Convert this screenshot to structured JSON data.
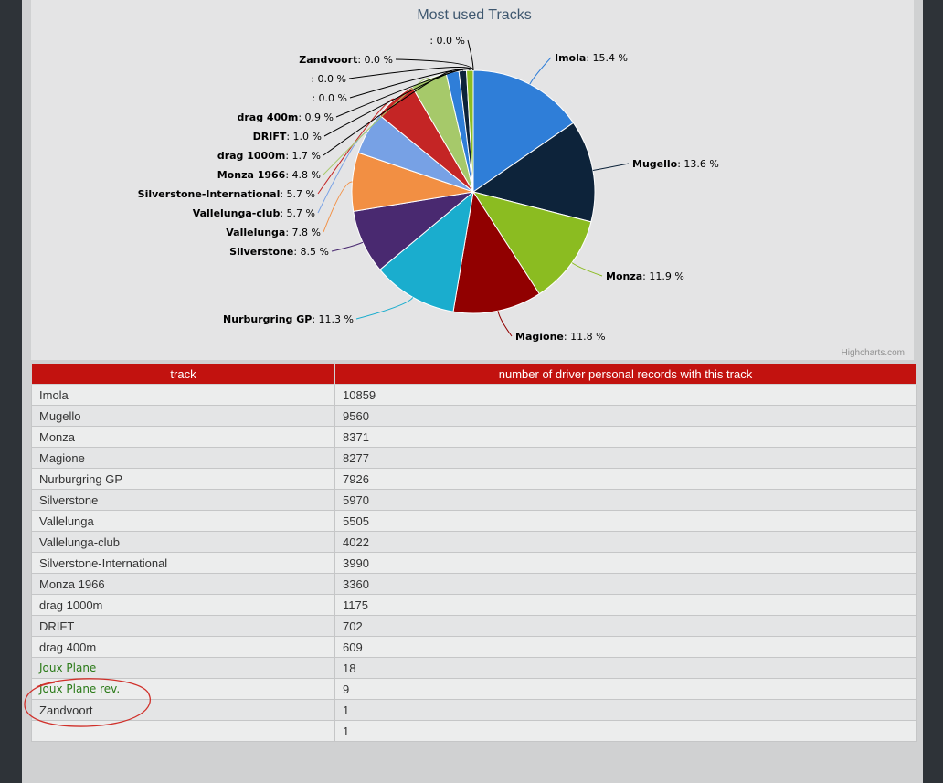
{
  "chart_data": {
    "type": "pie",
    "title": "Most used Tracks",
    "credit": "Highcharts.com",
    "slices": [
      {
        "label": "Imola",
        "value": 15.4,
        "color": "#2f7ed8"
      },
      {
        "label": "Mugello",
        "value": 13.6,
        "color": "#0d233a"
      },
      {
        "label": "Monza",
        "value": 11.9,
        "color": "#8bbc21"
      },
      {
        "label": "Magione",
        "value": 11.8,
        "color": "#910000"
      },
      {
        "label": "Nurburgring GP",
        "value": 11.3,
        "color": "#1aadce"
      },
      {
        "label": "Silverstone",
        "value": 8.5,
        "color": "#492970"
      },
      {
        "label": "Vallelunga",
        "value": 7.8,
        "color": "#f28f43"
      },
      {
        "label": "Vallelunga-club",
        "value": 5.7,
        "color": "#77a1e5"
      },
      {
        "label": "Silverstone-International",
        "value": 5.7,
        "color": "#c42525"
      },
      {
        "label": "Monza 1966",
        "value": 4.8,
        "color": "#a6c96a"
      },
      {
        "label": "drag 1000m",
        "value": 1.7,
        "color": "#2f7ed8"
      },
      {
        "label": "DRIFT",
        "value": 1.0,
        "color": "#0d233a"
      },
      {
        "label": "drag 400m",
        "value": 0.9,
        "color": "#8bbc21"
      },
      {
        "label": "",
        "value": 0.0,
        "color": "#910000"
      },
      {
        "label": "",
        "value": 0.0,
        "color": "#1aadce"
      },
      {
        "label": "Zandvoort",
        "value": 0.0,
        "color": "#492970"
      },
      {
        "label": "",
        "value": 0.0,
        "color": "#f28f43"
      }
    ]
  },
  "table": {
    "headers": [
      "track",
      "number of driver personal records with this track"
    ],
    "rows": [
      [
        "Imola",
        "10859"
      ],
      [
        "Mugello",
        "9560"
      ],
      [
        "Monza",
        "8371"
      ],
      [
        "Magione",
        "8277"
      ],
      [
        "Nurburgring GP",
        "7926"
      ],
      [
        "Silverstone",
        "5970"
      ],
      [
        "Vallelunga",
        "5505"
      ],
      [
        "Vallelunga-club",
        "4022"
      ],
      [
        "Silverstone-International",
        "3990"
      ],
      [
        "Monza 1966",
        "3360"
      ],
      [
        "drag 1000m",
        "1175"
      ],
      [
        "DRIFT",
        "702"
      ],
      [
        "drag 400m",
        "609"
      ],
      [
        "Joux Plane",
        "18"
      ],
      [
        "Joux Plane rev.",
        "9"
      ],
      [
        "Zandvoort",
        "1"
      ],
      [
        "",
        "1"
      ]
    ],
    "highlighted_rows": [
      13,
      14
    ]
  },
  "colors": {
    "header_bg": "#c2120f",
    "highlight_text": "#2a7a17",
    "annotation": "#d0302a"
  }
}
